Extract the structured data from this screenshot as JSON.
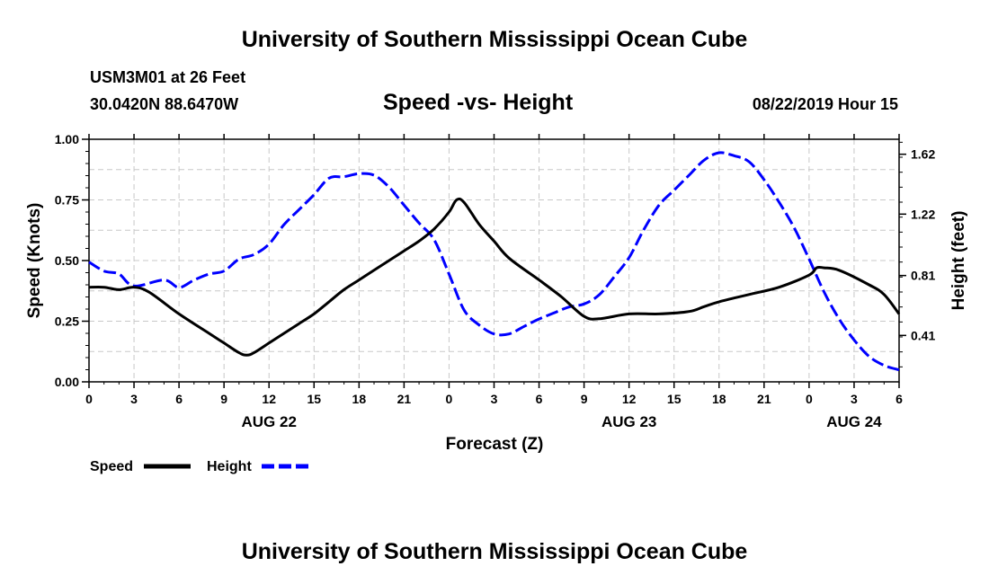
{
  "header": {
    "title": "University of Southern Mississippi Ocean Cube",
    "station": "USM3M01 at 26 Feet",
    "coords": "30.0420N 88.6470W",
    "date_hour": "08/22/2019 Hour 15"
  },
  "footer": {
    "title": "University of Southern Mississippi Ocean Cube"
  },
  "chart_data": {
    "type": "line",
    "title": "Speed -vs- Height",
    "xlabel": "Forecast (Z)",
    "ylabel_left": "Speed (Knots)",
    "ylabel_right": "Height (feet)",
    "x_unit": "hours since 2019-08-21 00Z",
    "xlim": [
      0,
      54
    ],
    "ylim_left": [
      0.0,
      1.0
    ],
    "ylim_right": [
      0.1,
      1.72
    ],
    "x_ticks": [
      0,
      3,
      6,
      9,
      12,
      15,
      18,
      21,
      24,
      27,
      30,
      33,
      36,
      39,
      42,
      45,
      48,
      51,
      54
    ],
    "x_tick_labels": [
      "0",
      "3",
      "6",
      "9",
      "12",
      "15",
      "18",
      "21",
      "0",
      "3",
      "6",
      "9",
      "12",
      "15",
      "18",
      "21",
      "0",
      "3",
      "6"
    ],
    "date_labels": [
      {
        "x": 12,
        "label": "AUG 22"
      },
      {
        "x": 36,
        "label": "AUG 23"
      },
      {
        "x": 51,
        "label": "AUG 24"
      }
    ],
    "y_left_ticks": [
      0.0,
      0.25,
      0.5,
      0.75,
      1.0
    ],
    "y_left_tick_labels": [
      "0.00",
      "0.25",
      "0.50",
      "0.75",
      "1.00"
    ],
    "y_right_ticks": [
      0.41,
      0.81,
      1.22,
      1.62
    ],
    "y_right_tick_labels": [
      "0.41",
      "0.81",
      "1.22",
      "1.62"
    ],
    "grid": true,
    "legend_position": "bottom-left",
    "series": [
      {
        "name": "Speed",
        "axis": "left",
        "color": "#000000",
        "dashed": false,
        "x": [
          0,
          1,
          2,
          3,
          4,
          6,
          8,
          9,
          10,
          10.5,
          11,
          12,
          13,
          14,
          15,
          16,
          17,
          18,
          19,
          20,
          21,
          22,
          23,
          24,
          24.5,
          25,
          26,
          27,
          28,
          30,
          31.5,
          33,
          34,
          36,
          38,
          40,
          41,
          42,
          44,
          46,
          48,
          48.5,
          49,
          50,
          52,
          53,
          54
        ],
        "values": [
          0.39,
          0.39,
          0.38,
          0.39,
          0.37,
          0.28,
          0.2,
          0.16,
          0.12,
          0.11,
          0.12,
          0.16,
          0.2,
          0.24,
          0.28,
          0.33,
          0.38,
          0.42,
          0.46,
          0.5,
          0.54,
          0.58,
          0.63,
          0.7,
          0.75,
          0.74,
          0.65,
          0.58,
          0.51,
          0.42,
          0.35,
          0.27,
          0.26,
          0.28,
          0.28,
          0.29,
          0.31,
          0.33,
          0.36,
          0.39,
          0.44,
          0.47,
          0.47,
          0.46,
          0.4,
          0.36,
          0.28
        ]
      },
      {
        "name": "Height",
        "axis": "right",
        "color": "#0000ff",
        "dashed": true,
        "x": [
          0,
          1,
          2,
          3,
          5,
          6,
          7,
          8,
          9,
          10,
          11,
          12,
          13,
          14,
          15,
          16,
          17,
          18,
          19,
          20,
          21,
          22,
          23,
          24,
          25,
          26,
          27,
          28,
          29,
          30,
          31,
          32,
          33,
          34,
          35,
          36,
          37,
          38,
          39,
          40,
          41,
          42,
          43,
          44,
          45,
          46,
          47,
          48,
          49,
          50,
          51,
          52,
          53,
          54
        ],
        "values": [
          0.9,
          0.84,
          0.82,
          0.74,
          0.78,
          0.73,
          0.78,
          0.82,
          0.84,
          0.92,
          0.95,
          1.02,
          1.15,
          1.25,
          1.35,
          1.46,
          1.47,
          1.49,
          1.48,
          1.4,
          1.28,
          1.16,
          1.05,
          0.82,
          0.58,
          0.48,
          0.42,
          0.42,
          0.47,
          0.52,
          0.56,
          0.6,
          0.62,
          0.68,
          0.8,
          0.93,
          1.12,
          1.28,
          1.38,
          1.48,
          1.58,
          1.63,
          1.61,
          1.57,
          1.45,
          1.3,
          1.13,
          0.92,
          0.7,
          0.52,
          0.38,
          0.27,
          0.21,
          0.18
        ]
      }
    ]
  }
}
